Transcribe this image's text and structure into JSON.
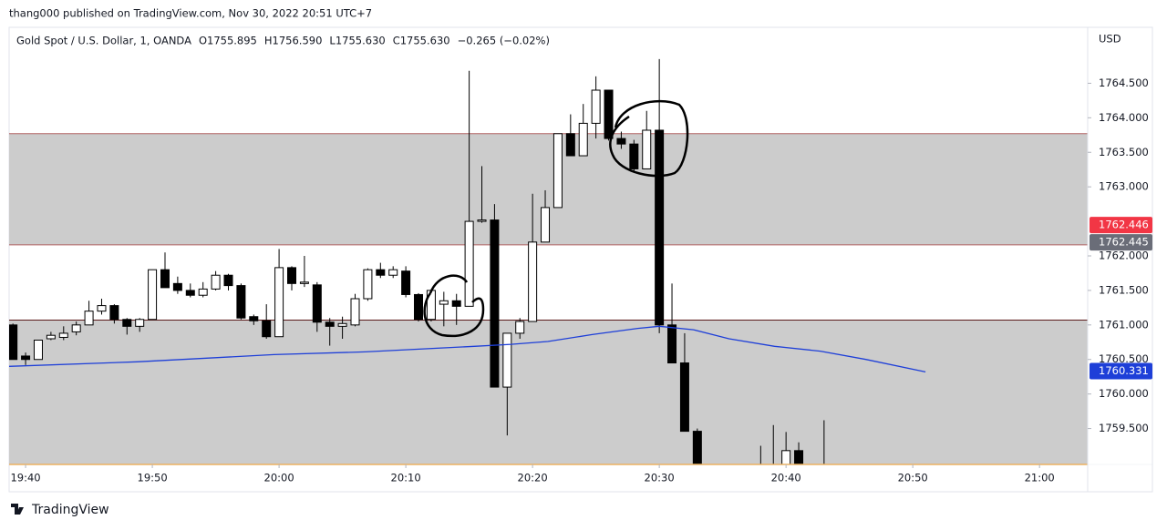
{
  "header": {
    "text": "thang000 published on TradingView.com, Nov 30, 2022 20:51 UTC+7"
  },
  "footer": {
    "brand": "TradingView"
  },
  "chart_data": {
    "type": "candlestick",
    "symbol": "Gold Spot / U.S. Dollar, 1, OANDA",
    "legend_values": [
      "O1755.895",
      "H1756.590",
      "L1755.630",
      "C1755.630",
      "−0.265 (−0.02%)"
    ],
    "currency": "USD",
    "xlim": [
      1178.7,
      1263.8
    ],
    "xticks": [
      {
        "value": 1180,
        "label": "19:40"
      },
      {
        "value": 1190,
        "label": "19:50"
      },
      {
        "value": 1200,
        "label": "20:00"
      },
      {
        "value": 1210,
        "label": "20:10"
      },
      {
        "value": 1220,
        "label": "20:20"
      },
      {
        "value": 1230,
        "label": "20:30"
      },
      {
        "value": 1240,
        "label": "20:40"
      },
      {
        "value": 1250,
        "label": "20:50"
      },
      {
        "value": 1260,
        "label": "21:00"
      }
    ],
    "ylim": [
      1758.98,
      1765.31
    ],
    "yticks": [
      {
        "value": 1759.5,
        "label": "1759.500"
      },
      {
        "value": 1760,
        "label": "1760.000"
      },
      {
        "value": 1760.5,
        "label": "1760.500"
      },
      {
        "value": 1761,
        "label": "1761.000"
      },
      {
        "value": 1761.5,
        "label": "1761.500"
      },
      {
        "value": 1762,
        "label": "1762.000"
      },
      {
        "value": 1763,
        "label": "1763.000"
      },
      {
        "value": 1763.5,
        "label": "1763.500"
      },
      {
        "value": 1764,
        "label": "1764.000"
      },
      {
        "value": 1764.5,
        "label": "1764.500"
      }
    ],
    "x": [
      1179,
      1180,
      1181,
      1182,
      1183,
      1184,
      1185,
      1186,
      1187,
      1188,
      1189,
      1190,
      1191,
      1192,
      1193,
      1194,
      1195,
      1196,
      1197,
      1198,
      1199,
      1200,
      1201,
      1202,
      1203,
      1204,
      1205,
      1206,
      1207,
      1208,
      1209,
      1210,
      1211,
      1212,
      1213,
      1214,
      1215,
      1216,
      1217,
      1218,
      1219,
      1220,
      1221,
      1222,
      1223,
      1224,
      1225,
      1226,
      1227,
      1228,
      1229,
      1230,
      1231,
      1232,
      1233,
      1238,
      1239,
      1240,
      1241,
      1243
    ],
    "open": [
      1761.0,
      1760.55,
      1760.5,
      1760.8,
      1760.82,
      1760.9,
      1761.0,
      1761.2,
      1761.28,
      1761.08,
      1760.98,
      1761.08,
      1761.8,
      1761.6,
      1761.5,
      1761.43,
      1761.52,
      1761.72,
      1761.57,
      1761.12,
      1761.06,
      1760.83,
      1761.83,
      1761.6,
      1761.58,
      1761.04,
      1760.98,
      1761.0,
      1761.38,
      1761.8,
      1761.72,
      1761.78,
      1761.44,
      1761.08,
      1761.3,
      1761.35,
      1761.27,
      1762.5,
      1762.52,
      1760.1,
      1760.88,
      1761.05,
      1762.2,
      1762.7,
      1763.77,
      1763.45,
      1763.92,
      1764.4,
      1763.7,
      1763.62,
      1763.26,
      1763.82,
      1761.0,
      1760.45,
      1759.46,
      1758.9,
      1758.95,
      1758.8,
      1759.18,
      1758.9
    ],
    "high": [
      1761.02,
      1760.6,
      1760.78,
      1760.9,
      1760.98,
      1761.05,
      1761.35,
      1761.38,
      1761.3,
      1761.1,
      1761.1,
      1761.8,
      1762.05,
      1761.7,
      1761.6,
      1761.62,
      1761.78,
      1761.74,
      1761.6,
      1761.15,
      1761.3,
      1762.1,
      1761.85,
      1762.0,
      1761.62,
      1761.1,
      1761.12,
      1761.45,
      1761.82,
      1761.9,
      1761.85,
      1761.85,
      1761.46,
      1761.5,
      1761.48,
      1761.45,
      1764.68,
      1763.3,
      1762.75,
      1760.88,
      1761.1,
      1762.9,
      1762.95,
      1763.77,
      1764.05,
      1764.2,
      1764.6,
      1764.4,
      1763.8,
      1763.68,
      1764.1,
      1764.85,
      1761.6,
      1760.88,
      1759.5,
      1759.25,
      1759.55,
      1759.45,
      1759.3,
      1759.62
    ],
    "low": [
      1760.5,
      1760.42,
      1760.5,
      1760.78,
      1760.78,
      1760.85,
      1761.0,
      1761.15,
      1761.02,
      1760.86,
      1760.9,
      1761.08,
      1761.54,
      1761.45,
      1761.4,
      1761.4,
      1761.5,
      1761.5,
      1761.08,
      1761.0,
      1760.8,
      1760.83,
      1761.5,
      1761.55,
      1760.9,
      1760.7,
      1760.8,
      1760.98,
      1761.35,
      1761.68,
      1761.68,
      1761.4,
      1761.05,
      1761.05,
      1760.98,
      1761.0,
      1761.27,
      1762.48,
      1760.1,
      1759.4,
      1760.8,
      1761.05,
      1762.2,
      1762.7,
      1763.45,
      1763.45,
      1763.7,
      1763.67,
      1763.55,
      1763.22,
      1763.26,
      1760.88,
      1760.45,
      1759.46,
      1758.9,
      1758.7,
      1758.7,
      1758.7,
      1758.8,
      1758.7
    ],
    "close": [
      1760.5,
      1760.5,
      1760.78,
      1760.85,
      1760.88,
      1761.0,
      1761.2,
      1761.28,
      1761.08,
      1760.98,
      1761.08,
      1761.8,
      1761.54,
      1761.5,
      1761.43,
      1761.52,
      1761.72,
      1761.57,
      1761.1,
      1761.06,
      1760.83,
      1761.83,
      1761.6,
      1761.62,
      1761.04,
      1760.98,
      1761.02,
      1761.38,
      1761.8,
      1761.72,
      1761.8,
      1761.44,
      1761.08,
      1761.5,
      1761.35,
      1761.27,
      1762.5,
      1762.52,
      1760.1,
      1760.88,
      1761.05,
      1762.2,
      1762.7,
      1763.77,
      1763.45,
      1763.92,
      1764.4,
      1763.7,
      1763.62,
      1763.26,
      1763.82,
      1761.0,
      1760.45,
      1759.46,
      1758.9,
      1758.8,
      1758.85,
      1759.18,
      1758.9,
      1758.85
    ],
    "up_color": "#ffffff",
    "down_color": "#000000",
    "moving_average": {
      "color": "#1e3fd8",
      "x": [
        1178.7,
        1188.8,
        1199.6,
        1206.8,
        1215.4,
        1218.3,
        1221.2,
        1224.7,
        1228.3,
        1230,
        1232.7,
        1235.5,
        1239.1,
        1242.7,
        1246.3,
        1251
      ],
      "values": [
        1760.4,
        1760.466,
        1760.57,
        1760.61,
        1760.69,
        1760.72,
        1760.76,
        1760.86,
        1760.95,
        1760.98,
        1760.93,
        1760.8,
        1760.69,
        1760.62,
        1760.5,
        1760.32
      ]
    },
    "zones": [
      {
        "from": 1762.16,
        "to": 1763.77,
        "color": "#cccccc"
      },
      {
        "from": 1758.98,
        "to": 1761.07,
        "color": "#cccccc"
      }
    ],
    "price_labels": [
      {
        "value": 1762.446,
        "color": "#f23645"
      },
      {
        "value": 1762.445,
        "color": "#6a6d78"
      },
      {
        "value": 1760.331,
        "color": "#1e3fd8"
      }
    ]
  }
}
